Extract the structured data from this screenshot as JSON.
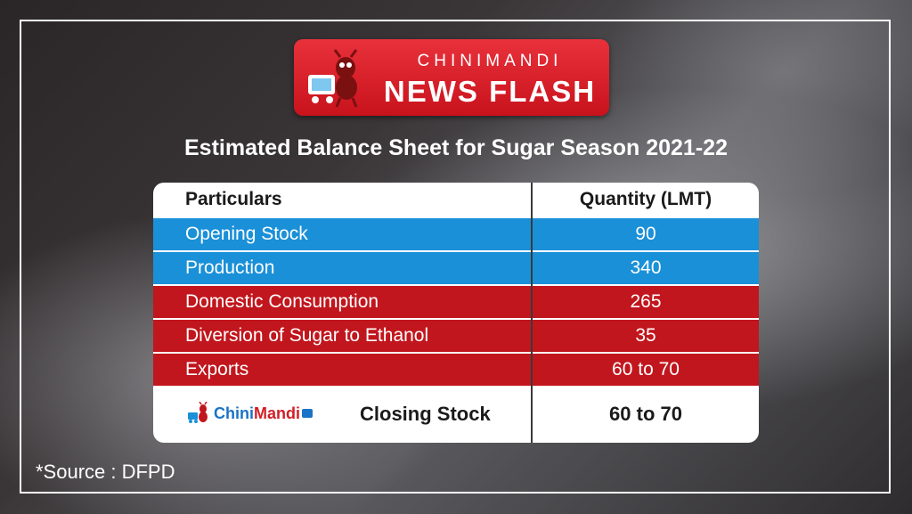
{
  "badge": {
    "kicker": "CHINIMANDI",
    "headline": "NEWS FLASH"
  },
  "title": "Estimated Balance Sheet for Sugar Season 2021-22",
  "table": {
    "headers": [
      "Particulars",
      "Quantity (LMT)"
    ],
    "rows": [
      {
        "particular": "Opening Stock",
        "quantity": "90"
      },
      {
        "particular": "Production",
        "quantity": "340"
      },
      {
        "particular": "Domestic Consumption",
        "quantity": "265"
      },
      {
        "particular": "Diversion of Sugar to Ethanol",
        "quantity": "35"
      },
      {
        "particular": "Exports",
        "quantity": "60 to 70"
      }
    ],
    "closing": {
      "brand_chini": "Chini",
      "brand_mandi": "Mandi",
      "label": "Closing Stock",
      "quantity": "60 to 70"
    }
  },
  "source": "*Source : DFPD",
  "colors": {
    "brand_red": "#c1161d",
    "brand_blue": "#1a90d8"
  }
}
